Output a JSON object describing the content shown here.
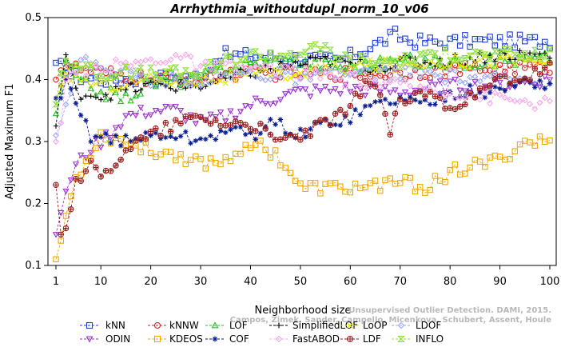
{
  "chart_data": {
    "type": "line",
    "title": "Arrhythmia_withoutdupl_norm_10_v06",
    "xlabel": "Neighborhood size",
    "ylabel": "Adjusted Maximum F1",
    "xlim": [
      1,
      100
    ],
    "ylim": [
      0.1,
      0.5
    ],
    "xticks": [
      1,
      10,
      20,
      30,
      40,
      50,
      60,
      70,
      80,
      90,
      100
    ],
    "yticks": [
      0.1,
      0.2,
      0.3,
      0.4,
      0.5
    ],
    "grid": false,
    "legend_position": "bottom",
    "watermark": "Campos, Zimek, Sander, Campello, Micenkova, Schubert, Assent, Houle",
    "watermark2": "Unsupervised Outlier Detection. DAMI, 2015.",
    "series": [
      {
        "name": "kNN",
        "color": "#1f3fd8",
        "marker": "square",
        "anchors": [
          [
            1,
            0.427
          ],
          [
            2,
            0.43
          ],
          [
            3,
            0.41
          ],
          [
            5,
            0.405
          ],
          [
            10,
            0.4
          ],
          [
            20,
            0.402
          ],
          [
            30,
            0.405
          ],
          [
            34,
            0.44
          ],
          [
            50,
            0.435
          ],
          [
            58,
            0.43
          ],
          [
            62,
            0.445
          ],
          [
            66,
            0.46
          ],
          [
            69,
            0.472
          ],
          [
            72,
            0.462
          ],
          [
            78,
            0.46
          ],
          [
            85,
            0.462
          ],
          [
            100,
            0.462
          ]
        ]
      },
      {
        "name": "kNNW",
        "color": "#d62020",
        "marker": "circle",
        "anchors": [
          [
            1,
            0.4
          ],
          [
            2,
            0.415
          ],
          [
            3,
            0.42
          ],
          [
            5,
            0.418
          ],
          [
            10,
            0.41
          ],
          [
            20,
            0.4
          ],
          [
            30,
            0.4
          ],
          [
            35,
            0.41
          ],
          [
            50,
            0.41
          ],
          [
            65,
            0.41
          ],
          [
            80,
            0.415
          ],
          [
            100,
            0.42
          ]
        ]
      },
      {
        "name": "LOF",
        "color": "#22c022",
        "marker": "triangle-up",
        "anchors": [
          [
            1,
            0.345
          ],
          [
            2,
            0.38
          ],
          [
            3,
            0.43
          ],
          [
            5,
            0.4
          ],
          [
            10,
            0.38
          ],
          [
            15,
            0.37
          ],
          [
            20,
            0.395
          ],
          [
            30,
            0.4
          ],
          [
            35,
            0.42
          ],
          [
            45,
            0.43
          ],
          [
            55,
            0.425
          ],
          [
            60,
            0.42
          ],
          [
            70,
            0.43
          ],
          [
            80,
            0.428
          ],
          [
            90,
            0.43
          ],
          [
            100,
            0.435
          ]
        ]
      },
      {
        "name": "SimplifiedLOF",
        "color": "#000000",
        "marker": "plus",
        "anchors": [
          [
            1,
            0.325
          ],
          [
            2,
            0.39
          ],
          [
            3,
            0.44
          ],
          [
            5,
            0.38
          ],
          [
            10,
            0.375
          ],
          [
            20,
            0.39
          ],
          [
            30,
            0.39
          ],
          [
            35,
            0.4
          ],
          [
            45,
            0.42
          ],
          [
            55,
            0.43
          ],
          [
            65,
            0.42
          ],
          [
            70,
            0.428
          ],
          [
            80,
            0.43
          ],
          [
            90,
            0.44
          ],
          [
            100,
            0.44
          ]
        ]
      },
      {
        "name": "LoOP",
        "color": "#e6e600",
        "marker": "x",
        "anchors": [
          [
            1,
            0.36
          ],
          [
            2,
            0.39
          ],
          [
            3,
            0.41
          ],
          [
            10,
            0.39
          ],
          [
            20,
            0.4
          ],
          [
            30,
            0.4
          ],
          [
            40,
            0.405
          ],
          [
            50,
            0.41
          ],
          [
            60,
            0.42
          ],
          [
            70,
            0.425
          ],
          [
            80,
            0.43
          ],
          [
            90,
            0.43
          ],
          [
            100,
            0.43
          ]
        ]
      },
      {
        "name": "LDOF",
        "color": "#9aa8f0",
        "marker": "diamond",
        "anchors": [
          [
            1,
            0.31
          ],
          [
            2,
            0.33
          ],
          [
            3,
            0.36
          ],
          [
            6,
            0.43
          ],
          [
            10,
            0.42
          ],
          [
            20,
            0.4
          ],
          [
            30,
            0.4
          ],
          [
            40,
            0.41
          ],
          [
            50,
            0.4
          ],
          [
            60,
            0.41
          ],
          [
            70,
            0.41
          ],
          [
            80,
            0.405
          ],
          [
            90,
            0.4
          ],
          [
            100,
            0.395
          ]
        ]
      },
      {
        "name": "ODIN",
        "color": "#9a32cd",
        "marker": "triangle-down",
        "anchors": [
          [
            1,
            0.15
          ],
          [
            2,
            0.185
          ],
          [
            3,
            0.22
          ],
          [
            5,
            0.26
          ],
          [
            8,
            0.29
          ],
          [
            10,
            0.3
          ],
          [
            15,
            0.34
          ],
          [
            20,
            0.35
          ],
          [
            25,
            0.35
          ],
          [
            30,
            0.33
          ],
          [
            35,
            0.34
          ],
          [
            40,
            0.36
          ],
          [
            45,
            0.37
          ],
          [
            50,
            0.38
          ],
          [
            60,
            0.385
          ],
          [
            70,
            0.38
          ],
          [
            80,
            0.39
          ],
          [
            90,
            0.39
          ],
          [
            100,
            0.4
          ]
        ]
      },
      {
        "name": "KDEOS",
        "color": "#f0a800",
        "marker": "square",
        "anchors": [
          [
            1,
            0.11
          ],
          [
            2,
            0.14
          ],
          [
            3,
            0.18
          ],
          [
            5,
            0.24
          ],
          [
            10,
            0.31
          ],
          [
            15,
            0.3
          ],
          [
            20,
            0.285
          ],
          [
            25,
            0.28
          ],
          [
            30,
            0.265
          ],
          [
            35,
            0.27
          ],
          [
            40,
            0.3
          ],
          [
            45,
            0.28
          ],
          [
            48,
            0.25
          ],
          [
            50,
            0.225
          ],
          [
            55,
            0.225
          ],
          [
            60,
            0.225
          ],
          [
            65,
            0.23
          ],
          [
            70,
            0.235
          ],
          [
            75,
            0.225
          ],
          [
            80,
            0.25
          ],
          [
            85,
            0.26
          ],
          [
            90,
            0.27
          ],
          [
            95,
            0.3
          ],
          [
            100,
            0.3
          ]
        ]
      },
      {
        "name": "COF",
        "color": "#0a1f8f",
        "marker": "asterisk",
        "anchors": [
          [
            2,
            0.37
          ],
          [
            3,
            0.4
          ],
          [
            5,
            0.36
          ],
          [
            8,
            0.31
          ],
          [
            10,
            0.31
          ],
          [
            15,
            0.3
          ],
          [
            20,
            0.31
          ],
          [
            25,
            0.31
          ],
          [
            30,
            0.3
          ],
          [
            35,
            0.32
          ],
          [
            40,
            0.31
          ],
          [
            45,
            0.33
          ],
          [
            50,
            0.31
          ],
          [
            55,
            0.33
          ],
          [
            60,
            0.34
          ],
          [
            65,
            0.36
          ],
          [
            70,
            0.37
          ],
          [
            75,
            0.36
          ],
          [
            80,
            0.38
          ],
          [
            85,
            0.38
          ],
          [
            90,
            0.38
          ],
          [
            95,
            0.4
          ],
          [
            100,
            0.39
          ]
        ]
      },
      {
        "name": "FastABOD",
        "color": "#f5a8e8",
        "marker": "diamond",
        "anchors": [
          [
            1,
            0.3
          ],
          [
            2,
            0.33
          ],
          [
            3,
            0.4
          ],
          [
            5,
            0.41
          ],
          [
            10,
            0.42
          ],
          [
            20,
            0.43
          ],
          [
            25,
            0.44
          ],
          [
            30,
            0.42
          ],
          [
            40,
            0.42
          ],
          [
            50,
            0.41
          ],
          [
            60,
            0.4
          ],
          [
            70,
            0.39
          ],
          [
            80,
            0.38
          ],
          [
            90,
            0.37
          ],
          [
            100,
            0.36
          ]
        ]
      },
      {
        "name": "LDF",
        "color": "#9b1c1c",
        "marker": "circle-plus",
        "anchors": [
          [
            1,
            0.23
          ],
          [
            2,
            0.15
          ],
          [
            3,
            0.16
          ],
          [
            5,
            0.24
          ],
          [
            8,
            0.26
          ],
          [
            10,
            0.24
          ],
          [
            15,
            0.29
          ],
          [
            20,
            0.31
          ],
          [
            25,
            0.33
          ],
          [
            30,
            0.34
          ],
          [
            35,
            0.33
          ],
          [
            40,
            0.33
          ],
          [
            45,
            0.3
          ],
          [
            50,
            0.31
          ],
          [
            55,
            0.33
          ],
          [
            60,
            0.35
          ],
          [
            63,
            0.4
          ],
          [
            65,
            0.39
          ],
          [
            68,
            0.32
          ],
          [
            70,
            0.36
          ],
          [
            75,
            0.38
          ],
          [
            80,
            0.36
          ],
          [
            85,
            0.37
          ],
          [
            90,
            0.4
          ],
          [
            95,
            0.4
          ],
          [
            100,
            0.42
          ]
        ]
      },
      {
        "name": "INFLO",
        "color": "#8fe03a",
        "marker": "hourglass",
        "anchors": [
          [
            1,
            0.36
          ],
          [
            2,
            0.41
          ],
          [
            3,
            0.43
          ],
          [
            10,
            0.41
          ],
          [
            20,
            0.41
          ],
          [
            30,
            0.41
          ],
          [
            35,
            0.43
          ],
          [
            40,
            0.44
          ],
          [
            45,
            0.44
          ],
          [
            50,
            0.445
          ],
          [
            55,
            0.45
          ],
          [
            60,
            0.43
          ],
          [
            70,
            0.43
          ],
          [
            80,
            0.44
          ],
          [
            90,
            0.44
          ],
          [
            100,
            0.44
          ]
        ]
      }
    ]
  }
}
